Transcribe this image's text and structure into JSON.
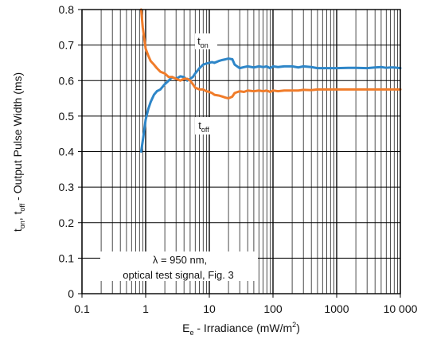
{
  "chart_data": {
    "type": "line",
    "xscale": "log",
    "xlim": [
      0.1,
      10000
    ],
    "ylim": [
      0,
      0.8
    ],
    "grid": true,
    "x_ticks": [
      0.1,
      1,
      10,
      100,
      1000,
      10000
    ],
    "x_tick_labels": [
      "0.1",
      "1",
      "10",
      "100",
      "1000",
      "10 000"
    ],
    "y_ticks": [
      0,
      0.1,
      0.2,
      0.3,
      0.4,
      0.5,
      0.6,
      0.7,
      0.8
    ],
    "y_tick_labels": [
      "0",
      "0.1",
      "0.2",
      "0.3",
      "0.4",
      "0.5",
      "0.6",
      "0.7",
      "0.8"
    ],
    "xlabel": {
      "prefix": "E",
      "prefix_sub": "e",
      "middle": " - Irradiance (mW/m",
      "sup": "2",
      "suffix": ")"
    },
    "ylabel": {
      "part1": "t",
      "sub1": "on",
      "part2": ", t",
      "sub2": "off",
      "part3": " - Output Pulse Width (ms)"
    },
    "annotation": {
      "line1": "λ = 950 nm,",
      "line2": "optical test signal, Fig. 3"
    },
    "series": [
      {
        "name": "t",
        "name_sub": "on",
        "color": "#2e86c8",
        "x": [
          0.85,
          0.9,
          0.95,
          1.0,
          1.1,
          1.2,
          1.35,
          1.5,
          1.7,
          2.0,
          2.3,
          2.6,
          3.0,
          3.5,
          4.0,
          4.5,
          5.0,
          5.5,
          6.0,
          7.0,
          8.0,
          9.0,
          10.0,
          11.0,
          12.0,
          14.0,
          16.0,
          18.0,
          20.0,
          23.0,
          25.0,
          30.0,
          35.0,
          40.0,
          50.0,
          60.0,
          70.0,
          80.0,
          90.0,
          100.0,
          120.0,
          150.0,
          200.0,
          250.0,
          300.0,
          400.0,
          500.0,
          700.0,
          1000.0,
          1500.0,
          2000.0,
          3000.0,
          4000.0,
          5000.0,
          6000.0,
          7000.0,
          8000.0,
          10000.0
        ],
        "y": [
          0.4,
          0.43,
          0.46,
          0.49,
          0.52,
          0.54,
          0.56,
          0.57,
          0.575,
          0.59,
          0.6,
          0.61,
          0.605,
          0.612,
          0.61,
          0.6,
          0.605,
          0.61,
          0.62,
          0.635,
          0.645,
          0.648,
          0.65,
          0.652,
          0.65,
          0.655,
          0.658,
          0.66,
          0.662,
          0.66,
          0.645,
          0.635,
          0.638,
          0.64,
          0.637,
          0.64,
          0.638,
          0.64,
          0.635,
          0.64,
          0.638,
          0.64,
          0.64,
          0.637,
          0.64,
          0.638,
          0.635,
          0.635,
          0.635,
          0.636,
          0.636,
          0.635,
          0.637,
          0.638,
          0.636,
          0.637,
          0.637,
          0.635
        ]
      },
      {
        "name": "t",
        "name_sub": "off",
        "color": "#f07c2a",
        "x": [
          0.85,
          0.9,
          0.95,
          1.0,
          1.1,
          1.2,
          1.35,
          1.5,
          1.7,
          2.0,
          2.3,
          2.6,
          3.0,
          3.5,
          4.0,
          4.5,
          5.0,
          5.5,
          6.0,
          7.0,
          8.0,
          9.0,
          10.0,
          11.0,
          12.0,
          14.0,
          16.0,
          18.0,
          20.0,
          23.0,
          25.0,
          30.0,
          35.0,
          40.0,
          50.0,
          60.0,
          70.0,
          80.0,
          90.0,
          100.0,
          120.0,
          150.0,
          200.0,
          250.0,
          300.0,
          400.0,
          500.0,
          700.0,
          1000.0,
          1500.0,
          2000.0,
          3000.0,
          4000.0,
          5000.0,
          6000.0,
          7000.0,
          8000.0,
          10000.0
        ],
        "y": [
          0.8,
          0.75,
          0.72,
          0.69,
          0.67,
          0.655,
          0.645,
          0.635,
          0.625,
          0.62,
          0.61,
          0.61,
          0.605,
          0.6,
          0.605,
          0.605,
          0.6,
          0.59,
          0.58,
          0.575,
          0.575,
          0.57,
          0.568,
          0.565,
          0.56,
          0.558,
          0.555,
          0.552,
          0.55,
          0.555,
          0.565,
          0.57,
          0.568,
          0.572,
          0.57,
          0.572,
          0.57,
          0.572,
          0.568,
          0.572,
          0.57,
          0.572,
          0.572,
          0.572,
          0.574,
          0.573,
          0.575,
          0.575,
          0.575,
          0.575,
          0.575,
          0.575,
          0.575,
          0.575,
          0.575,
          0.575,
          0.575,
          0.575
        ]
      }
    ]
  }
}
